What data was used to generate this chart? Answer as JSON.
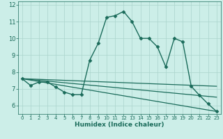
{
  "xlabel": "Humidex (Indice chaleur)",
  "bg_color": "#cceee8",
  "grid_color": "#aad4cc",
  "line_color": "#1a6b5a",
  "xlim": [
    -0.5,
    23.5
  ],
  "ylim": [
    5.5,
    12.2
  ],
  "xticks": [
    0,
    1,
    2,
    3,
    4,
    5,
    6,
    7,
    8,
    9,
    10,
    11,
    12,
    13,
    14,
    15,
    16,
    17,
    18,
    19,
    20,
    21,
    22,
    23
  ],
  "yticks": [
    6,
    7,
    8,
    9,
    10,
    11,
    12
  ],
  "curves": [
    {
      "x": [
        0,
        1,
        2,
        3,
        4,
        5,
        6,
        7,
        8,
        9,
        10,
        11,
        12,
        13,
        14,
        15,
        16,
        17,
        18,
        19,
        20,
        21,
        22,
        23
      ],
      "y": [
        7.6,
        7.2,
        7.4,
        7.4,
        7.1,
        6.8,
        6.65,
        6.65,
        8.7,
        9.7,
        11.25,
        11.35,
        11.6,
        11.0,
        10.0,
        10.0,
        9.5,
        8.3,
        10.0,
        9.8,
        7.15,
        6.6,
        6.1,
        5.65
      ],
      "marker": "D",
      "markersize": 2.5,
      "linewidth": 1.0
    },
    {
      "x": [
        0,
        23
      ],
      "y": [
        7.6,
        7.15
      ],
      "marker": null,
      "linewidth": 0.9
    },
    {
      "x": [
        0,
        23
      ],
      "y": [
        7.6,
        6.5
      ],
      "marker": null,
      "linewidth": 0.9
    },
    {
      "x": [
        0,
        23
      ],
      "y": [
        7.6,
        5.65
      ],
      "marker": null,
      "linewidth": 0.9
    }
  ]
}
